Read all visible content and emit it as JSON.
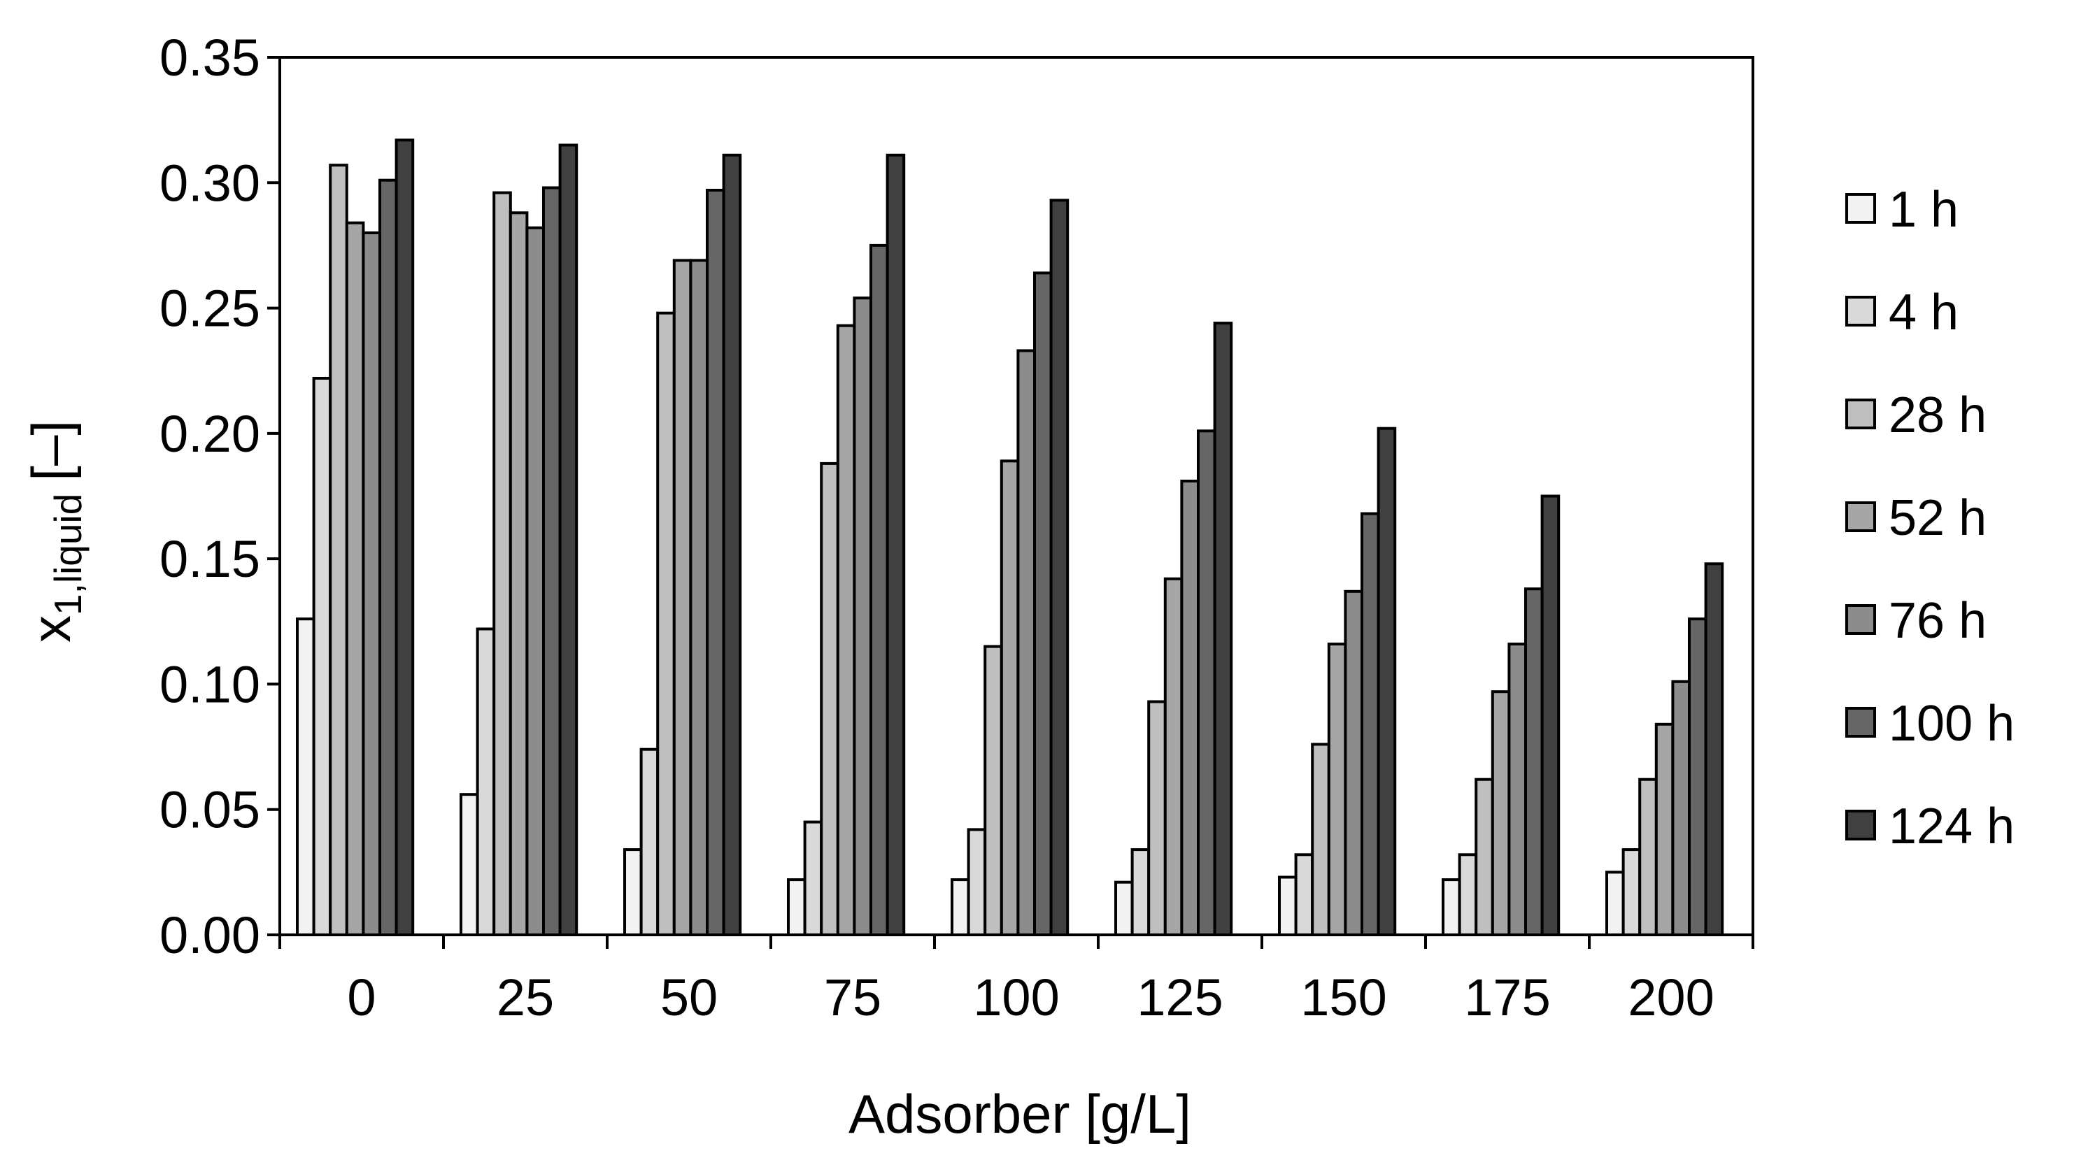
{
  "chart_data": {
    "type": "bar",
    "title": "",
    "xlabel": "Adsorber [g/L]",
    "ylabel": {
      "main": "x",
      "subscript": "1,liquid",
      "unit": "[–]"
    },
    "ylim": [
      0,
      0.35
    ],
    "yticks": [
      "0.00",
      "0.05",
      "0.10",
      "0.15",
      "0.20",
      "0.25",
      "0.30",
      "0.35"
    ],
    "grid": false,
    "legend_position": "right",
    "categories": [
      "0",
      "25",
      "50",
      "75",
      "100",
      "125",
      "150",
      "175",
      "200"
    ],
    "series": [
      {
        "name": "1 h",
        "color": "#f2f2f2",
        "values": [
          0.126,
          0.056,
          0.034,
          0.022,
          0.022,
          0.021,
          0.023,
          0.022,
          0.025
        ]
      },
      {
        "name": "4 h",
        "color": "#d9d9d9",
        "values": [
          0.222,
          0.122,
          0.074,
          0.045,
          0.042,
          0.034,
          0.032,
          0.032,
          0.034
        ]
      },
      {
        "name": "28 h",
        "color": "#bfbfbf",
        "values": [
          0.307,
          0.296,
          0.248,
          0.188,
          0.115,
          0.093,
          0.076,
          0.062,
          0.062
        ]
      },
      {
        "name": "52 h",
        "color": "#a6a6a6",
        "values": [
          0.284,
          0.288,
          0.269,
          0.243,
          0.189,
          0.142,
          0.116,
          0.097,
          0.084
        ]
      },
      {
        "name": "76 h",
        "color": "#8c8c8c",
        "values": [
          0.28,
          0.282,
          0.269,
          0.254,
          0.233,
          0.181,
          0.137,
          0.116,
          0.101
        ]
      },
      {
        "name": "100 h",
        "color": "#666666",
        "values": [
          0.301,
          0.298,
          0.297,
          0.275,
          0.264,
          0.201,
          0.168,
          0.138,
          0.126
        ]
      },
      {
        "name": "124 h",
        "color": "#404040",
        "values": [
          0.317,
          0.315,
          0.311,
          0.311,
          0.293,
          0.244,
          0.202,
          0.175,
          0.148
        ]
      }
    ]
  }
}
